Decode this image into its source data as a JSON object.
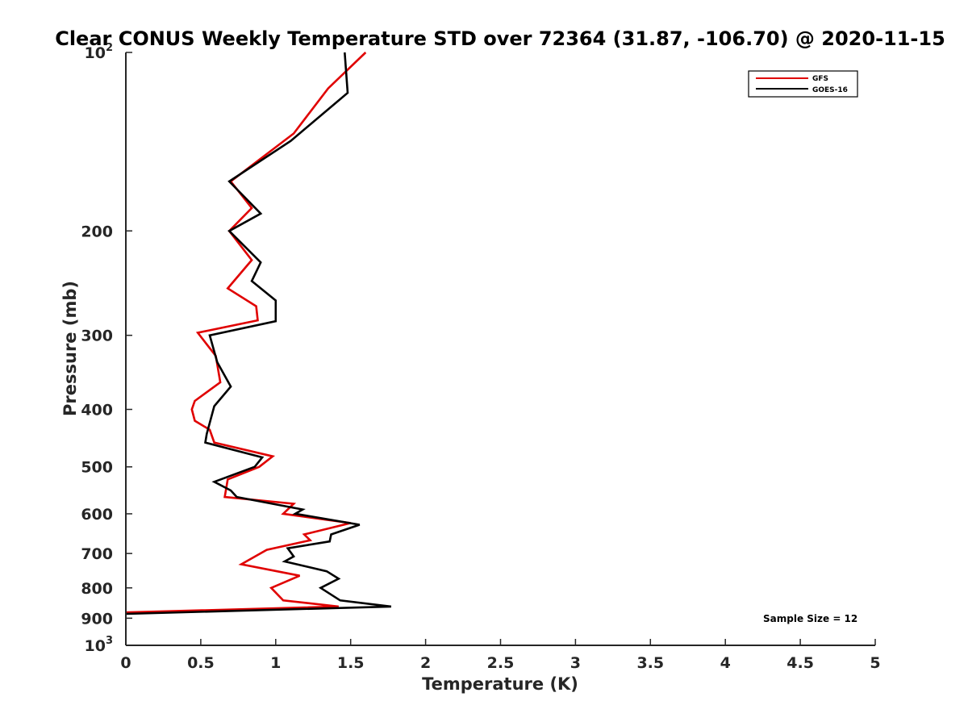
{
  "chart_data": {
    "type": "line",
    "title": "Clear CONUS Weekly Temperature STD over 72364 (31.87, -106.70) @ 2020-11-15",
    "xlabel": "Temperature (K)",
    "ylabel": "Pressure (mb)",
    "xlim": [
      0,
      5
    ],
    "ylim": [
      100,
      1000
    ],
    "y_scale": "log",
    "y_reversed": true,
    "x_ticks": [
      "0",
      "0.5",
      "1",
      "1.5",
      "2",
      "2.5",
      "3",
      "3.5",
      "4",
      "4.5",
      "5"
    ],
    "y_ticks": [
      {
        "value": 100,
        "base": "10",
        "exp": "2"
      },
      {
        "value": 200,
        "label": "200"
      },
      {
        "value": 300,
        "label": "300"
      },
      {
        "value": 400,
        "label": "400"
      },
      {
        "value": 500,
        "label": "500"
      },
      {
        "value": 600,
        "label": "600"
      },
      {
        "value": 700,
        "label": "700"
      },
      {
        "value": 800,
        "label": "800"
      },
      {
        "value": 900,
        "label": "900"
      },
      {
        "value": 1000,
        "base": "10",
        "exp": "3"
      }
    ],
    "grid": false,
    "legend_position": "top-right",
    "annotation": "Sample Size = 12",
    "series": [
      {
        "name": "GFS",
        "color": "#e00000",
        "points": [
          {
            "x": 1.6,
            "y": 100
          },
          {
            "x": 1.35,
            "y": 115
          },
          {
            "x": 1.12,
            "y": 137
          },
          {
            "x": 0.7,
            "y": 165
          },
          {
            "x": 0.84,
            "y": 183
          },
          {
            "x": 0.69,
            "y": 200
          },
          {
            "x": 0.84,
            "y": 224
          },
          {
            "x": 0.68,
            "y": 250
          },
          {
            "x": 0.87,
            "y": 268
          },
          {
            "x": 0.88,
            "y": 283
          },
          {
            "x": 0.48,
            "y": 297
          },
          {
            "x": 0.6,
            "y": 325
          },
          {
            "x": 0.63,
            "y": 360
          },
          {
            "x": 0.46,
            "y": 387
          },
          {
            "x": 0.44,
            "y": 400
          },
          {
            "x": 0.46,
            "y": 418
          },
          {
            "x": 0.56,
            "y": 433
          },
          {
            "x": 0.59,
            "y": 455
          },
          {
            "x": 0.98,
            "y": 480
          },
          {
            "x": 0.89,
            "y": 500
          },
          {
            "x": 0.68,
            "y": 525
          },
          {
            "x": 0.66,
            "y": 562
          },
          {
            "x": 1.12,
            "y": 577
          },
          {
            "x": 1.05,
            "y": 600
          },
          {
            "x": 1.5,
            "y": 622
          },
          {
            "x": 1.19,
            "y": 650
          },
          {
            "x": 1.23,
            "y": 665
          },
          {
            "x": 0.94,
            "y": 690
          },
          {
            "x": 0.77,
            "y": 730
          },
          {
            "x": 1.16,
            "y": 763
          },
          {
            "x": 0.97,
            "y": 800
          },
          {
            "x": 1.05,
            "y": 840
          },
          {
            "x": 1.42,
            "y": 860
          },
          {
            "x": 0.0,
            "y": 880
          }
        ]
      },
      {
        "name": "GOES-16",
        "color": "#000000",
        "points": [
          {
            "x": 1.46,
            "y": 100
          },
          {
            "x": 1.48,
            "y": 117
          },
          {
            "x": 1.1,
            "y": 141
          },
          {
            "x": 0.69,
            "y": 165
          },
          {
            "x": 0.9,
            "y": 187
          },
          {
            "x": 0.69,
            "y": 200
          },
          {
            "x": 0.9,
            "y": 226
          },
          {
            "x": 0.84,
            "y": 243
          },
          {
            "x": 1.0,
            "y": 262
          },
          {
            "x": 1.0,
            "y": 284
          },
          {
            "x": 0.56,
            "y": 300
          },
          {
            "x": 0.61,
            "y": 333
          },
          {
            "x": 0.7,
            "y": 366
          },
          {
            "x": 0.59,
            "y": 395
          },
          {
            "x": 0.54,
            "y": 440
          },
          {
            "x": 0.53,
            "y": 455
          },
          {
            "x": 0.91,
            "y": 482
          },
          {
            "x": 0.86,
            "y": 500
          },
          {
            "x": 0.59,
            "y": 530
          },
          {
            "x": 0.7,
            "y": 548
          },
          {
            "x": 0.74,
            "y": 562
          },
          {
            "x": 1.18,
            "y": 590
          },
          {
            "x": 1.13,
            "y": 600
          },
          {
            "x": 1.56,
            "y": 626
          },
          {
            "x": 1.37,
            "y": 650
          },
          {
            "x": 1.36,
            "y": 668
          },
          {
            "x": 1.08,
            "y": 686
          },
          {
            "x": 1.12,
            "y": 708
          },
          {
            "x": 1.06,
            "y": 722
          },
          {
            "x": 1.34,
            "y": 750
          },
          {
            "x": 1.42,
            "y": 772
          },
          {
            "x": 1.3,
            "y": 800
          },
          {
            "x": 1.43,
            "y": 840
          },
          {
            "x": 1.77,
            "y": 860
          },
          {
            "x": 0.0,
            "y": 885
          }
        ]
      }
    ]
  }
}
